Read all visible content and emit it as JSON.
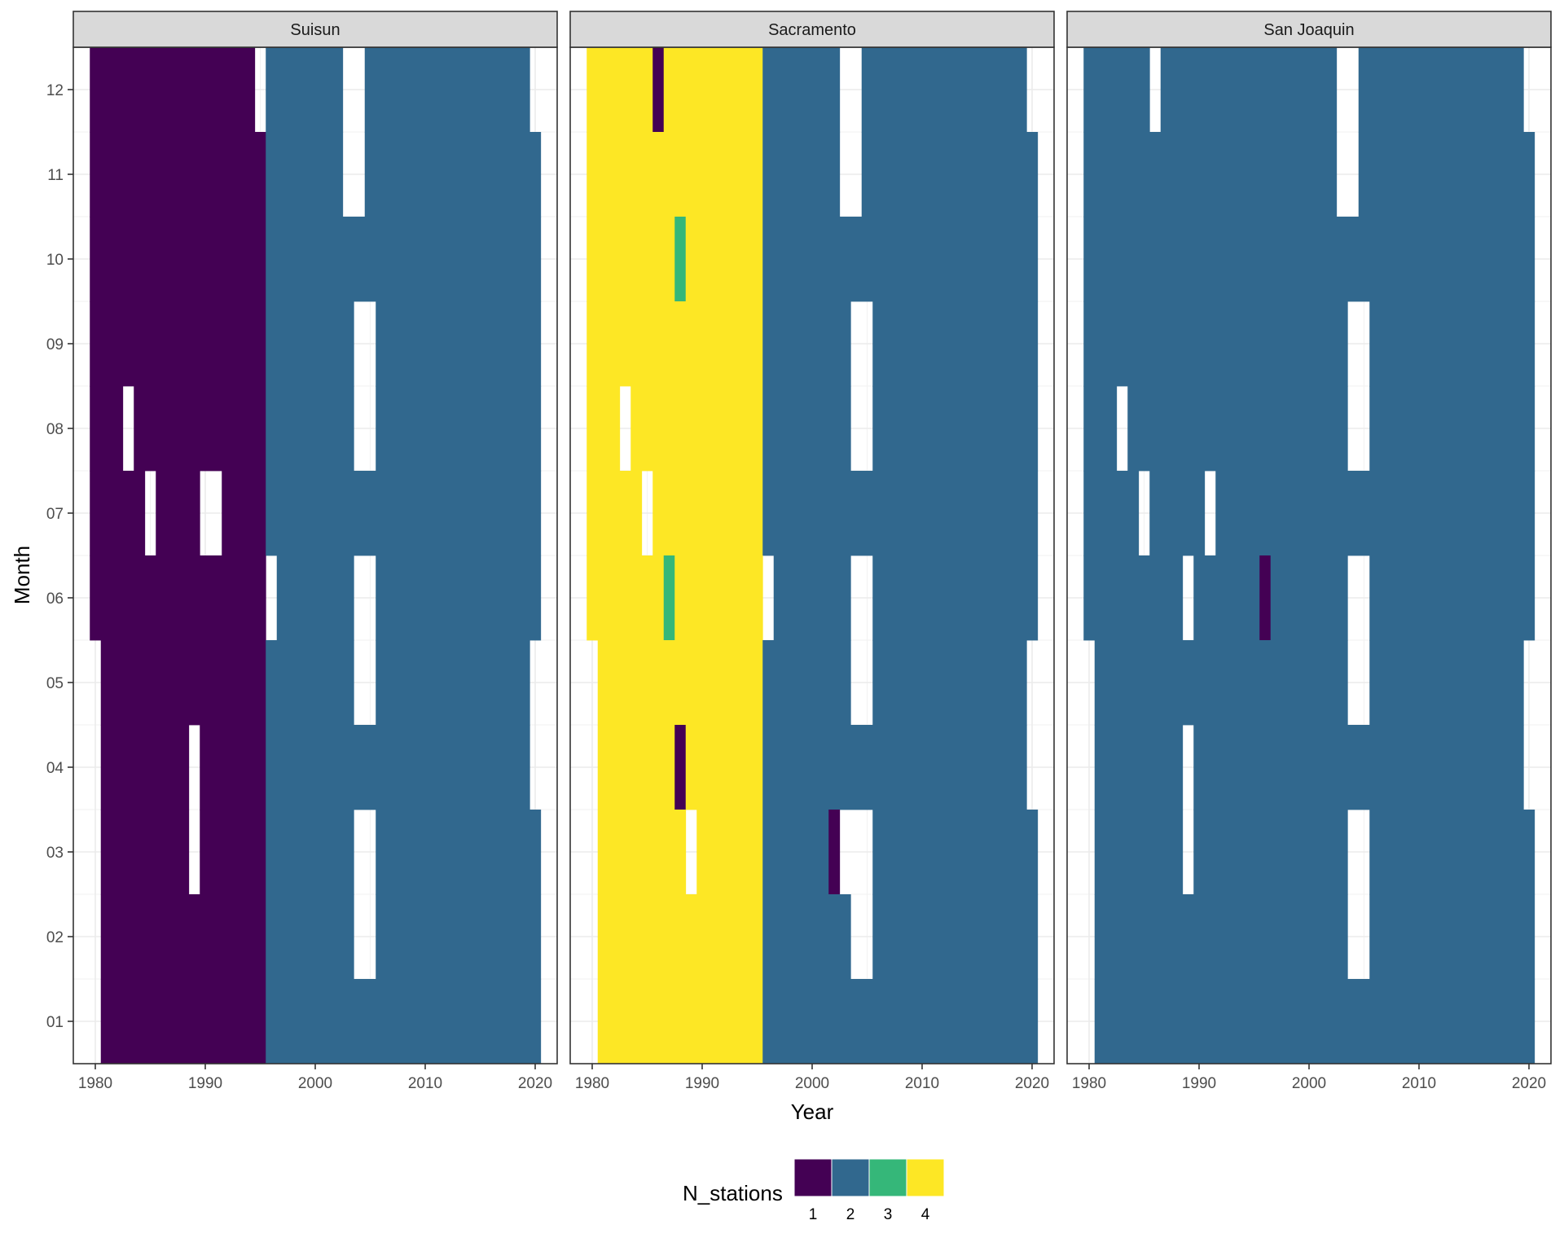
{
  "chart_data": {
    "type": "heatmap",
    "x_label": "Year",
    "y_label": "Month",
    "x_ticks": [
      1980,
      1990,
      2000,
      2010,
      2020
    ],
    "y_ticks": [
      "01",
      "02",
      "03",
      "04",
      "05",
      "06",
      "07",
      "08",
      "09",
      "10",
      "11",
      "12"
    ],
    "xlim": [
      1978,
      2022
    ],
    "ylim": [
      0.5,
      12.5
    ],
    "legend": {
      "title": "N_stations",
      "position": "bottom",
      "levels": [
        {
          "label": "1",
          "color": "#440154"
        },
        {
          "label": "2",
          "color": "#31688E"
        },
        {
          "label": "3",
          "color": "#35B779"
        },
        {
          "label": "4",
          "color": "#FDE725"
        }
      ]
    },
    "panels": [
      {
        "name": "Suisun",
        "segments": [
          {
            "month": 12,
            "ranges": [
              [
                1980,
                1994,
                1
              ],
              [
                1996,
                2002,
                2
              ],
              [
                2005,
                2019,
                2
              ]
            ]
          },
          {
            "month": 11,
            "ranges": [
              [
                1980,
                1995,
                1
              ],
              [
                1996,
                2002,
                2
              ],
              [
                2005,
                2020,
                2
              ]
            ]
          },
          {
            "month": 10,
            "ranges": [
              [
                1980,
                1995,
                1
              ],
              [
                1996,
                2020,
                2
              ]
            ]
          },
          {
            "month": 9,
            "ranges": [
              [
                1980,
                1995,
                1
              ],
              [
                1996,
                2003,
                2
              ],
              [
                2006,
                2020,
                2
              ]
            ]
          },
          {
            "month": 8,
            "ranges": [
              [
                1980,
                1982,
                1
              ],
              [
                1984,
                1995,
                1
              ],
              [
                1996,
                2003,
                2
              ],
              [
                2006,
                2020,
                2
              ]
            ]
          },
          {
            "month": 7,
            "ranges": [
              [
                1980,
                1984,
                1
              ],
              [
                1986,
                1989,
                1
              ],
              [
                1992,
                1995,
                1
              ],
              [
                1996,
                2020,
                2
              ]
            ]
          },
          {
            "month": 6,
            "ranges": [
              [
                1980,
                1995,
                1
              ],
              [
                1997,
                2003,
                2
              ],
              [
                2006,
                2020,
                2
              ]
            ]
          },
          {
            "month": 5,
            "ranges": [
              [
                1981,
                1995,
                1
              ],
              [
                1996,
                2003,
                2
              ],
              [
                2006,
                2019,
                2
              ]
            ]
          },
          {
            "month": 4,
            "ranges": [
              [
                1981,
                1988,
                1
              ],
              [
                1990,
                1995,
                1
              ],
              [
                1996,
                2019,
                2
              ]
            ]
          },
          {
            "month": 3,
            "ranges": [
              [
                1981,
                1988,
                1
              ],
              [
                1990,
                1995,
                1
              ],
              [
                1996,
                2003,
                2
              ],
              [
                2006,
                2020,
                2
              ]
            ]
          },
          {
            "month": 2,
            "ranges": [
              [
                1981,
                1995,
                1
              ],
              [
                1996,
                2003,
                2
              ],
              [
                2006,
                2020,
                2
              ]
            ]
          },
          {
            "month": 1,
            "ranges": [
              [
                1981,
                1995,
                1
              ],
              [
                1996,
                2020,
                2
              ]
            ]
          }
        ]
      },
      {
        "name": "Sacramento",
        "segments": [
          {
            "month": 12,
            "ranges": [
              [
                1980,
                1985,
                4
              ],
              [
                1986,
                1986,
                1
              ],
              [
                1987,
                1995,
                4
              ],
              [
                1996,
                2002,
                2
              ],
              [
                2005,
                2019,
                2
              ]
            ]
          },
          {
            "month": 11,
            "ranges": [
              [
                1980,
                1995,
                4
              ],
              [
                1996,
                2002,
                2
              ],
              [
                2005,
                2020,
                2
              ]
            ]
          },
          {
            "month": 10,
            "ranges": [
              [
                1980,
                1987,
                4
              ],
              [
                1988,
                1988,
                3
              ],
              [
                1989,
                1995,
                4
              ],
              [
                1996,
                2020,
                2
              ]
            ]
          },
          {
            "month": 9,
            "ranges": [
              [
                1980,
                1995,
                4
              ],
              [
                1996,
                2003,
                2
              ],
              [
                2006,
                2020,
                2
              ]
            ]
          },
          {
            "month": 8,
            "ranges": [
              [
                1980,
                1982,
                4
              ],
              [
                1984,
                1995,
                4
              ],
              [
                1996,
                2003,
                2
              ],
              [
                2006,
                2020,
                2
              ]
            ]
          },
          {
            "month": 7,
            "ranges": [
              [
                1980,
                1984,
                4
              ],
              [
                1986,
                1995,
                4
              ],
              [
                1996,
                2020,
                2
              ]
            ]
          },
          {
            "month": 6,
            "ranges": [
              [
                1980,
                1986,
                4
              ],
              [
                1987,
                1987,
                3
              ],
              [
                1988,
                1995,
                4
              ],
              [
                1997,
                2003,
                2
              ],
              [
                2006,
                2020,
                2
              ]
            ]
          },
          {
            "month": 5,
            "ranges": [
              [
                1981,
                1995,
                4
              ],
              [
                1996,
                2003,
                2
              ],
              [
                2006,
                2019,
                2
              ]
            ]
          },
          {
            "month": 4,
            "ranges": [
              [
                1981,
                1987,
                4
              ],
              [
                1988,
                1988,
                1
              ],
              [
                1989,
                1995,
                4
              ],
              [
                1996,
                2019,
                2
              ]
            ]
          },
          {
            "month": 3,
            "ranges": [
              [
                1981,
                1988,
                4
              ],
              [
                1990,
                1995,
                4
              ],
              [
                1996,
                2001,
                2
              ],
              [
                2002,
                2002,
                1
              ],
              [
                2006,
                2020,
                2
              ]
            ]
          },
          {
            "month": 2,
            "ranges": [
              [
                1981,
                1995,
                4
              ],
              [
                1996,
                2003,
                2
              ],
              [
                2006,
                2020,
                2
              ]
            ]
          },
          {
            "month": 1,
            "ranges": [
              [
                1981,
                1995,
                4
              ],
              [
                1996,
                2020,
                2
              ]
            ]
          }
        ]
      },
      {
        "name": "San Joaquin",
        "segments": [
          {
            "month": 12,
            "ranges": [
              [
                1980,
                1985,
                2
              ],
              [
                1987,
                2002,
                2
              ],
              [
                2005,
                2019,
                2
              ]
            ]
          },
          {
            "month": 11,
            "ranges": [
              [
                1980,
                2002,
                2
              ],
              [
                2005,
                2020,
                2
              ]
            ]
          },
          {
            "month": 10,
            "ranges": [
              [
                1980,
                2020,
                2
              ]
            ]
          },
          {
            "month": 9,
            "ranges": [
              [
                1980,
                2003,
                2
              ],
              [
                2006,
                2020,
                2
              ]
            ]
          },
          {
            "month": 8,
            "ranges": [
              [
                1980,
                1982,
                2
              ],
              [
                1984,
                2003,
                2
              ],
              [
                2006,
                2020,
                2
              ]
            ]
          },
          {
            "month": 7,
            "ranges": [
              [
                1980,
                1984,
                2
              ],
              [
                1986,
                1990,
                2
              ],
              [
                1992,
                2020,
                2
              ]
            ]
          },
          {
            "month": 6,
            "ranges": [
              [
                1980,
                1988,
                2
              ],
              [
                1990,
                1995,
                2
              ],
              [
                1996,
                1996,
                1
              ],
              [
                1997,
                2003,
                2
              ],
              [
                2006,
                2020,
                2
              ]
            ]
          },
          {
            "month": 5,
            "ranges": [
              [
                1981,
                2003,
                2
              ],
              [
                2006,
                2019,
                2
              ]
            ]
          },
          {
            "month": 4,
            "ranges": [
              [
                1981,
                1988,
                2
              ],
              [
                1990,
                2019,
                2
              ]
            ]
          },
          {
            "month": 3,
            "ranges": [
              [
                1981,
                1988,
                2
              ],
              [
                1990,
                2003,
                2
              ],
              [
                2006,
                2020,
                2
              ]
            ]
          },
          {
            "month": 2,
            "ranges": [
              [
                1981,
                2003,
                2
              ],
              [
                2006,
                2020,
                2
              ]
            ]
          },
          {
            "month": 1,
            "ranges": [
              [
                1981,
                2020,
                2
              ]
            ]
          }
        ]
      }
    ]
  }
}
